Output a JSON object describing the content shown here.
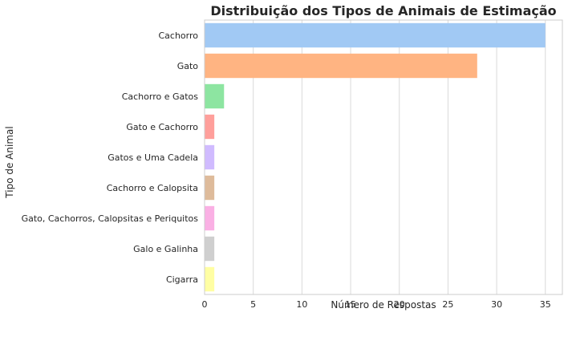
{
  "chart_data": {
    "type": "bar",
    "orientation": "horizontal",
    "title": "Distribuição dos Tipos de Animais de Estimação",
    "xlabel": "Número de Respostas",
    "ylabel": "Tipo de Animal",
    "xlim": [
      0,
      36.75
    ],
    "xticks": [
      "0",
      "5",
      "10",
      "15",
      "20",
      "25",
      "30",
      "35"
    ],
    "grid": "vertical",
    "legend": "none",
    "categories": [
      "Cachorro",
      "Gato",
      "Cachorro e Gatos",
      "Gato e Cachorro",
      "Gatos e Uma Cadela",
      "Cachorro e Calopsita",
      "Gato, Cachorros, Calopsitas e Periquitos",
      "Galo e Galinha",
      "Cigarra"
    ],
    "values": [
      35,
      28,
      2,
      1,
      1,
      1,
      1,
      1,
      1
    ],
    "colors": [
      "#a1c9f4",
      "#ffb482",
      "#8de5a1",
      "#ff9f9b",
      "#d0bbff",
      "#debb9b",
      "#fab0e4",
      "#cfcfcf",
      "#fffea3"
    ]
  }
}
